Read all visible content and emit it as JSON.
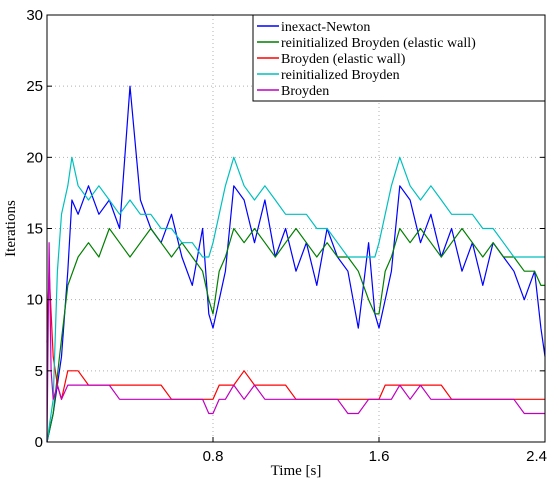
{
  "chart_data": {
    "type": "line",
    "title": "",
    "xlabel": "Time [s]",
    "ylabel": "Iterations",
    "xlim": [
      0,
      2.4
    ],
    "ylim": [
      0,
      30
    ],
    "grid": true,
    "legend_position": "top-right",
    "x_ticks": [
      {
        "value": 0.8,
        "label": "0.8"
      },
      {
        "value": 1.6,
        "label": "1.6"
      },
      {
        "value": 2.4,
        "label": "2.4"
      }
    ],
    "y_ticks": [
      {
        "value": 0,
        "label": "0"
      },
      {
        "value": 5,
        "label": "5"
      },
      {
        "value": 10,
        "label": "10"
      },
      {
        "value": 15,
        "label": "15"
      },
      {
        "value": 20,
        "label": "20"
      },
      {
        "value": 25,
        "label": "25"
      },
      {
        "value": 30,
        "label": "30"
      }
    ],
    "series": [
      {
        "name": "inexact-Newton",
        "color": "#0000ff",
        "x": [
          0.0,
          0.03,
          0.07,
          0.1,
          0.12,
          0.15,
          0.2,
          0.25,
          0.3,
          0.35,
          0.4,
          0.45,
          0.5,
          0.55,
          0.6,
          0.65,
          0.7,
          0.75,
          0.78,
          0.8,
          0.83,
          0.86,
          0.9,
          0.95,
          1.0,
          1.05,
          1.1,
          1.15,
          1.2,
          1.25,
          1.3,
          1.35,
          1.4,
          1.45,
          1.5,
          1.55,
          1.58,
          1.6,
          1.63,
          1.66,
          1.7,
          1.75,
          1.8,
          1.85,
          1.9,
          1.95,
          2.0,
          2.05,
          2.1,
          2.15,
          2.2,
          2.25,
          2.3,
          2.35,
          2.38,
          2.4
        ],
        "y": [
          0,
          2,
          6,
          12,
          17,
          16,
          18,
          16,
          17,
          15,
          25,
          17,
          15,
          14,
          16,
          13,
          11,
          15,
          9,
          8,
          10,
          12,
          18,
          17,
          14,
          17,
          13,
          15,
          12,
          14,
          11,
          15,
          13,
          12,
          8,
          14,
          9,
          8,
          10,
          12,
          18,
          17,
          14,
          16,
          13,
          15,
          12,
          14,
          11,
          14,
          13,
          12,
          10,
          12,
          8,
          6
        ]
      },
      {
        "name": "reinitialized Broyden (elastic wall)",
        "color": "#007f00",
        "x": [
          0.0,
          0.03,
          0.06,
          0.1,
          0.15,
          0.2,
          0.25,
          0.3,
          0.35,
          0.4,
          0.45,
          0.5,
          0.55,
          0.6,
          0.65,
          0.7,
          0.75,
          0.78,
          0.8,
          0.83,
          0.86,
          0.9,
          0.95,
          1.0,
          1.05,
          1.1,
          1.15,
          1.2,
          1.25,
          1.3,
          1.35,
          1.4,
          1.45,
          1.5,
          1.55,
          1.58,
          1.6,
          1.63,
          1.66,
          1.7,
          1.75,
          1.8,
          1.85,
          1.9,
          1.95,
          2.0,
          2.05,
          2.1,
          2.15,
          2.2,
          2.25,
          2.3,
          2.35,
          2.38,
          2.4
        ],
        "y": [
          0,
          2,
          6,
          11,
          13,
          14,
          13,
          15,
          14,
          13,
          14,
          15,
          14,
          13,
          14,
          13,
          12,
          10,
          9,
          12,
          13,
          15,
          14,
          15,
          14,
          13,
          14,
          15,
          14,
          13,
          14,
          13,
          13,
          12,
          10,
          9,
          9,
          12,
          13,
          15,
          14,
          15,
          14,
          13,
          14,
          15,
          14,
          13,
          14,
          13,
          13,
          12,
          12,
          11,
          11
        ]
      },
      {
        "name": "Broyden (elastic wall)",
        "color": "#ff0000",
        "x": [
          0.0,
          0.01,
          0.03,
          0.05,
          0.07,
          0.1,
          0.15,
          0.2,
          0.25,
          0.3,
          0.35,
          0.4,
          0.45,
          0.5,
          0.55,
          0.6,
          0.65,
          0.7,
          0.75,
          0.78,
          0.8,
          0.83,
          0.86,
          0.9,
          0.95,
          1.0,
          1.05,
          1.1,
          1.15,
          1.2,
          1.25,
          1.3,
          1.35,
          1.4,
          1.45,
          1.5,
          1.55,
          1.58,
          1.6,
          1.63,
          1.66,
          1.7,
          1.75,
          1.8,
          1.85,
          1.9,
          1.95,
          2.0,
          2.05,
          2.1,
          2.15,
          2.2,
          2.25,
          2.3,
          2.35,
          2.38,
          2.4
        ],
        "y": [
          7,
          12,
          6,
          4,
          3,
          5,
          5,
          4,
          4,
          4,
          4,
          4,
          4,
          4,
          4,
          3,
          3,
          3,
          3,
          3,
          3,
          4,
          4,
          4,
          5,
          4,
          4,
          4,
          4,
          3,
          3,
          3,
          3,
          3,
          3,
          3,
          3,
          3,
          3,
          4,
          4,
          4,
          4,
          4,
          4,
          4,
          3,
          3,
          3,
          3,
          3,
          3,
          3,
          3,
          3,
          3,
          3
        ]
      },
      {
        "name": "reinitialized Broyden",
        "color": "#00bfbf",
        "x": [
          0.0,
          0.03,
          0.05,
          0.07,
          0.1,
          0.12,
          0.15,
          0.2,
          0.25,
          0.3,
          0.35,
          0.4,
          0.45,
          0.5,
          0.55,
          0.6,
          0.65,
          0.7,
          0.75,
          0.78,
          0.8,
          0.83,
          0.86,
          0.9,
          0.95,
          1.0,
          1.05,
          1.1,
          1.15,
          1.2,
          1.25,
          1.3,
          1.35,
          1.4,
          1.45,
          1.5,
          1.55,
          1.58,
          1.6,
          1.63,
          1.66,
          1.7,
          1.75,
          1.8,
          1.85,
          1.9,
          1.95,
          2.0,
          2.05,
          2.1,
          2.15,
          2.2,
          2.25,
          2.3,
          2.35,
          2.38,
          2.4
        ],
        "y": [
          0,
          3,
          12,
          16,
          18,
          20,
          18,
          17,
          18,
          17,
          16,
          17,
          16,
          16,
          15,
          15,
          14,
          14,
          13,
          13,
          14,
          16,
          18,
          20,
          18,
          17,
          18,
          17,
          16,
          16,
          16,
          15,
          15,
          14,
          13,
          13,
          13,
          13,
          14,
          16,
          18,
          20,
          18,
          17,
          18,
          17,
          16,
          16,
          16,
          15,
          15,
          14,
          13,
          13,
          13,
          13,
          13
        ]
      },
      {
        "name": "Broyden",
        "color": "#bf00bf",
        "x": [
          0.0,
          0.01,
          0.02,
          0.03,
          0.05,
          0.07,
          0.1,
          0.15,
          0.2,
          0.25,
          0.3,
          0.35,
          0.4,
          0.45,
          0.5,
          0.55,
          0.6,
          0.65,
          0.7,
          0.75,
          0.78,
          0.8,
          0.83,
          0.86,
          0.9,
          0.95,
          1.0,
          1.05,
          1.1,
          1.15,
          1.2,
          1.25,
          1.3,
          1.35,
          1.4,
          1.45,
          1.5,
          1.55,
          1.58,
          1.6,
          1.63,
          1.66,
          1.7,
          1.75,
          1.8,
          1.85,
          1.9,
          1.95,
          2.0,
          2.05,
          2.1,
          2.15,
          2.2,
          2.25,
          2.3,
          2.35,
          2.38,
          2.4
        ],
        "y": [
          0,
          14,
          5,
          3,
          4,
          3,
          4,
          4,
          4,
          4,
          4,
          3,
          3,
          3,
          3,
          3,
          3,
          3,
          3,
          3,
          2,
          2,
          3,
          3,
          4,
          3,
          4,
          3,
          3,
          3,
          3,
          3,
          3,
          3,
          3,
          2,
          2,
          3,
          3,
          3,
          3,
          3,
          4,
          3,
          4,
          3,
          3,
          3,
          3,
          3,
          3,
          3,
          3,
          3,
          2,
          2,
          2,
          2
        ]
      }
    ]
  }
}
